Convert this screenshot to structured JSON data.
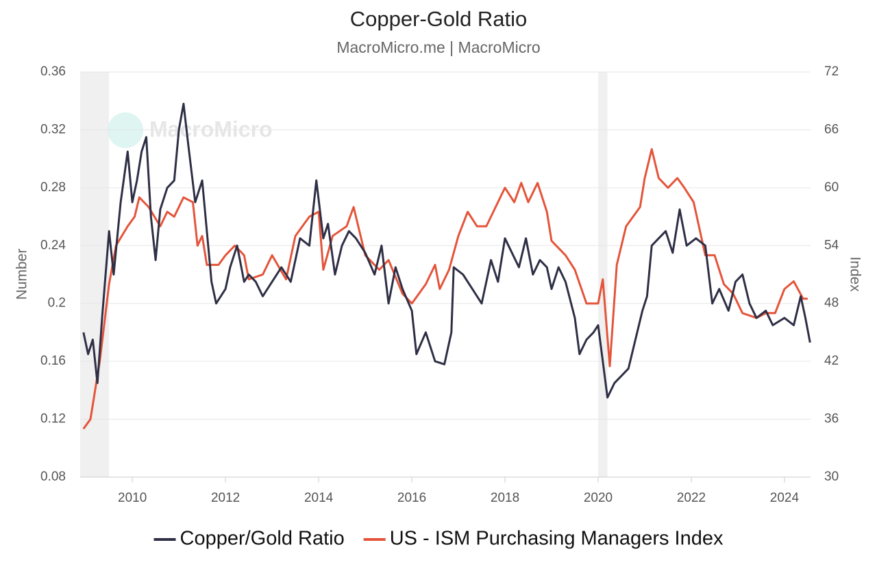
{
  "chart_data": {
    "type": "line",
    "title": "Copper-Gold Ratio",
    "subtitle": "MacroMicro.me | MacroMicro",
    "watermark": "MacroMicro",
    "ylabel": "Number",
    "y2label": "Index",
    "xlim": [
      2008.88,
      2024.56
    ],
    "xticks": [
      2010,
      2012,
      2014,
      2016,
      2018,
      2020,
      2022,
      2024
    ],
    "ylim": [
      0.08,
      0.36
    ],
    "yticks": [
      0.08,
      0.12,
      0.16,
      0.2,
      0.24,
      0.28,
      0.32,
      0.36
    ],
    "y2lim": [
      30,
      72
    ],
    "y2ticks": [
      30,
      36,
      42,
      48,
      54,
      60,
      66,
      72
    ],
    "grid": true,
    "legend": "bottom",
    "shaded_ranges": [
      [
        2008.88,
        2009.5
      ],
      [
        2020.0,
        2020.2
      ]
    ],
    "series": [
      {
        "name": "Copper/Gold Ratio",
        "color": "#2e2f45",
        "x": [
          2008.95,
          2009.05,
          2009.15,
          2009.25,
          2009.35,
          2009.5,
          2009.6,
          2009.75,
          2009.9,
          2010.0,
          2010.1,
          2010.2,
          2010.3,
          2010.4,
          2010.5,
          2010.6,
          2010.75,
          2010.9,
          2011.0,
          2011.1,
          2011.2,
          2011.35,
          2011.5,
          2011.6,
          2011.7,
          2011.8,
          2012.0,
          2012.1,
          2012.25,
          2012.4,
          2012.5,
          2012.65,
          2012.8,
          2013.0,
          2013.2,
          2013.4,
          2013.6,
          2013.8,
          2013.95,
          2014.1,
          2014.2,
          2014.35,
          2014.5,
          2014.65,
          2014.8,
          2015.0,
          2015.2,
          2015.35,
          2015.5,
          2015.65,
          2015.8,
          2016.0,
          2016.1,
          2016.3,
          2016.5,
          2016.7,
          2016.85,
          2016.9,
          2017.1,
          2017.3,
          2017.5,
          2017.7,
          2017.85,
          2018.0,
          2018.15,
          2018.3,
          2018.45,
          2018.6,
          2018.75,
          2018.9,
          2019.0,
          2019.15,
          2019.3,
          2019.5,
          2019.6,
          2019.75,
          2019.9,
          2020.0,
          2020.1,
          2020.2,
          2020.35,
          2020.5,
          2020.65,
          2020.8,
          2020.95,
          2021.05,
          2021.15,
          2021.3,
          2021.45,
          2021.6,
          2021.75,
          2021.9,
          2022.1,
          2022.3,
          2022.45,
          2022.6,
          2022.8,
          2022.95,
          2023.1,
          2023.25,
          2023.4,
          2023.6,
          2023.75,
          2024.0,
          2024.2,
          2024.35,
          2024.45,
          2024.55
        ],
        "values": [
          0.18,
          0.165,
          0.175,
          0.145,
          0.19,
          0.25,
          0.22,
          0.27,
          0.305,
          0.27,
          0.285,
          0.305,
          0.315,
          0.26,
          0.23,
          0.265,
          0.28,
          0.285,
          0.32,
          0.338,
          0.31,
          0.27,
          0.285,
          0.25,
          0.215,
          0.2,
          0.21,
          0.225,
          0.24,
          0.215,
          0.22,
          0.215,
          0.205,
          0.215,
          0.225,
          0.215,
          0.245,
          0.24,
          0.285,
          0.245,
          0.255,
          0.22,
          0.24,
          0.25,
          0.245,
          0.235,
          0.22,
          0.24,
          0.2,
          0.225,
          0.21,
          0.195,
          0.165,
          0.18,
          0.16,
          0.158,
          0.18,
          0.225,
          0.22,
          0.21,
          0.2,
          0.23,
          0.215,
          0.245,
          0.235,
          0.225,
          0.245,
          0.22,
          0.23,
          0.225,
          0.21,
          0.225,
          0.215,
          0.19,
          0.165,
          0.175,
          0.18,
          0.185,
          0.16,
          0.135,
          0.145,
          0.15,
          0.155,
          0.175,
          0.195,
          0.205,
          0.24,
          0.245,
          0.25,
          0.235,
          0.265,
          0.24,
          0.245,
          0.24,
          0.2,
          0.21,
          0.195,
          0.215,
          0.22,
          0.2,
          0.19,
          0.195,
          0.185,
          0.19,
          0.185,
          0.205,
          0.19,
          0.173
        ]
      },
      {
        "name": "US - ISM Purchasing Managers Index",
        "color": "#e4543a",
        "axis": "y2",
        "x": [
          2008.95,
          2009.1,
          2009.3,
          2009.5,
          2009.65,
          2009.9,
          2010.05,
          2010.15,
          2010.35,
          2010.6,
          2010.75,
          2010.9,
          2011.1,
          2011.3,
          2011.4,
          2011.5,
          2011.6,
          2011.85,
          2012.0,
          2012.2,
          2012.4,
          2012.5,
          2012.8,
          2013.0,
          2013.3,
          2013.5,
          2013.8,
          2014.0,
          2014.1,
          2014.3,
          2014.6,
          2014.75,
          2015.0,
          2015.3,
          2015.5,
          2015.8,
          2016.0,
          2016.3,
          2016.5,
          2016.6,
          2016.8,
          2017.0,
          2017.2,
          2017.4,
          2017.6,
          2017.9,
          2018.0,
          2018.2,
          2018.35,
          2018.5,
          2018.7,
          2018.9,
          2019.0,
          2019.3,
          2019.5,
          2019.75,
          2020.0,
          2020.1,
          2020.25,
          2020.4,
          2020.6,
          2020.9,
          2021.0,
          2021.15,
          2021.3,
          2021.5,
          2021.7,
          2021.85,
          2022.05,
          2022.3,
          2022.5,
          2022.7,
          2022.9,
          2023.1,
          2023.4,
          2023.6,
          2023.8,
          2024.0,
          2024.2,
          2024.4,
          2024.5
        ],
        "values": [
          35,
          36,
          42,
          50,
          54,
          56,
          57,
          59,
          58,
          56,
          57.5,
          57,
          59,
          58.5,
          54,
          55,
          52,
          52,
          53,
          54,
          53,
          50.5,
          51,
          53,
          50.5,
          55,
          57,
          57.5,
          51.5,
          55,
          56,
          58,
          53,
          51.5,
          52.5,
          49,
          48,
          50,
          52,
          49.5,
          51.5,
          55,
          57.5,
          56,
          56,
          59,
          60,
          58.5,
          60.5,
          58.5,
          60.5,
          57.5,
          54.5,
          53,
          51.5,
          48,
          48,
          50.5,
          41.5,
          52,
          56,
          58,
          61,
          64,
          61,
          60,
          61,
          60,
          58.5,
          53,
          53,
          50,
          49,
          47,
          46.5,
          47,
          47,
          49.5,
          50.3,
          48.5,
          48.5
        ]
      }
    ]
  }
}
